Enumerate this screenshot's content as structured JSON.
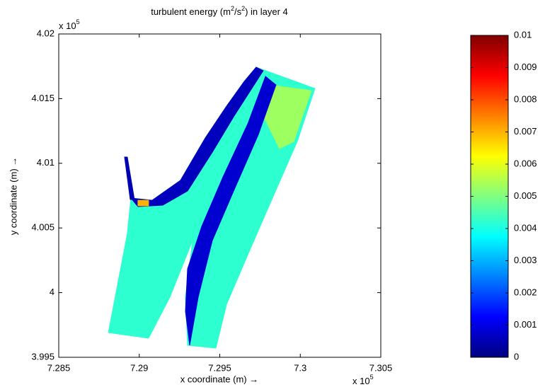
{
  "chart_data": {
    "type": "field",
    "title": [
      "turbulent energy (m",
      "2",
      "/s",
      "2",
      ") in layer 4"
    ],
    "xlabel": "x coordinate (m) →",
    "ylabel": "y coordinate (m) →",
    "x_multiplier": {
      "base": "x 10",
      "exponent": "5"
    },
    "y_multiplier": {
      "base": "x 10",
      "exponent": "5"
    },
    "xlim": [
      7.285,
      7.305
    ],
    "xticks": [
      7.285,
      7.29,
      7.295,
      7.3,
      7.305
    ],
    "ylim": [
      3.995,
      4.02
    ],
    "yticks": [
      3.995,
      4,
      4.005,
      4.01,
      4.015,
      4.02
    ],
    "colormap": "jet",
    "clim": [
      0,
      0.01
    ],
    "cticks": [
      0,
      0.001,
      0.002,
      0.003,
      0.004,
      0.005,
      0.006,
      0.007,
      0.008,
      0.009,
      0.01
    ],
    "patches": [
      {
        "value": 0.0042,
        "points": [
          [
            7.28808,
            3.99691
          ],
          [
            7.28926,
            4.00457
          ],
          [
            7.28948,
            4.00731
          ],
          [
            7.2908,
            4.00714
          ],
          [
            7.29256,
            4.00868
          ],
          [
            7.2941,
            4.01196
          ],
          [
            7.29542,
            4.01442
          ],
          [
            7.29652,
            4.01633
          ],
          [
            7.29726,
            4.01743
          ],
          [
            7.30091,
            4.01579
          ],
          [
            7.29981,
            4.01168
          ],
          [
            7.29827,
            4.00731
          ],
          [
            7.29674,
            4.00293
          ],
          [
            7.29542,
            3.9991
          ],
          [
            7.29476,
            3.99571
          ],
          [
            7.293,
            3.99593
          ],
          [
            7.29287,
            3.99965
          ],
          [
            7.29331,
            4.00403
          ],
          [
            7.2919,
            3.99965
          ],
          [
            7.29058,
            3.99648
          ]
        ]
      },
      {
        "value": 0.0053,
        "points": [
          [
            7.29805,
            4.01606
          ],
          [
            7.30069,
            4.01562
          ],
          [
            7.29959,
            4.01168
          ],
          [
            7.29871,
            4.01114
          ],
          [
            7.29762,
            4.01387
          ]
        ]
      },
      {
        "value": 0.0008,
        "points": [
          [
            7.29313,
            3.99593
          ],
          [
            7.29366,
            3.99965
          ],
          [
            7.29454,
            4.00403
          ],
          [
            7.29586,
            4.00786
          ],
          [
            7.2974,
            4.01223
          ],
          [
            7.29849,
            4.01606
          ],
          [
            7.29784,
            4.01672
          ],
          [
            7.29674,
            4.01305
          ],
          [
            7.2952,
            4.00895
          ],
          [
            7.29388,
            4.00512
          ],
          [
            7.293,
            4.00184
          ],
          [
            7.29287,
            3.99856
          ]
        ]
      },
      {
        "value": 0.0006,
        "points": [
          [
            7.28948,
            4.00731
          ],
          [
            7.2908,
            4.00714
          ],
          [
            7.29256,
            4.00868
          ],
          [
            7.2941,
            4.01196
          ],
          [
            7.29542,
            4.01442
          ],
          [
            7.29652,
            4.01633
          ],
          [
            7.29726,
            4.01743
          ],
          [
            7.2977,
            4.01716
          ],
          [
            7.29586,
            4.0136
          ],
          [
            7.29454,
            4.01086
          ],
          [
            7.293,
            4.00786
          ],
          [
            7.29146,
            4.00676
          ],
          [
            7.28992,
            4.00665
          ]
        ]
      },
      {
        "value": 0.0005,
        "points": [
          [
            7.28909,
            4.01048
          ],
          [
            7.28926,
            4.01048
          ],
          [
            7.2897,
            4.0072
          ],
          [
            7.28944,
            4.0072
          ]
        ]
      },
      {
        "value": 0.007,
        "points": [
          [
            7.28992,
            4.00714
          ],
          [
            7.29058,
            4.00714
          ],
          [
            7.29058,
            4.00671
          ],
          [
            7.28992,
            4.00671
          ]
        ]
      }
    ]
  }
}
